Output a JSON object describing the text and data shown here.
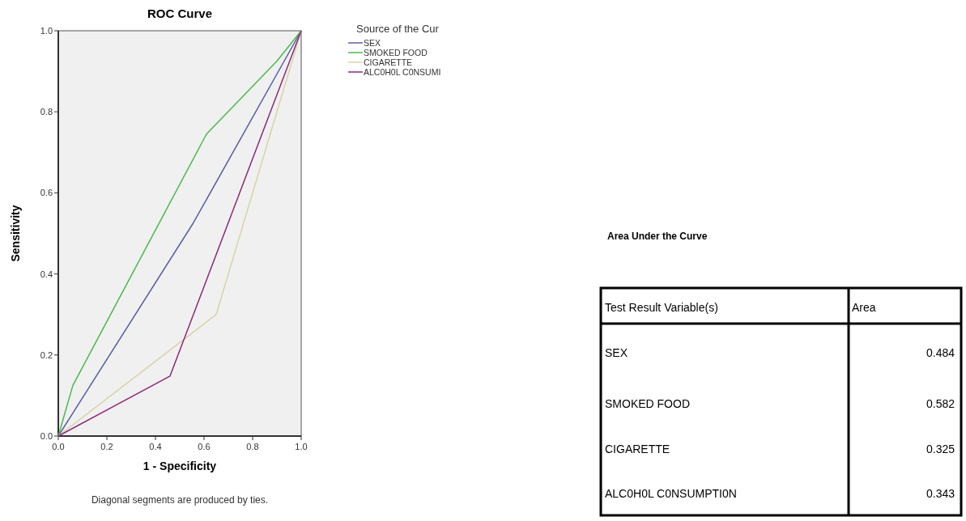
{
  "chart_data": {
    "type": "line",
    "title": "ROC Curve",
    "xlabel": "1 - Specificity",
    "ylabel": "Sensitivity",
    "legend_title": "Source of the Cur",
    "legend": "right",
    "xlim": [
      0,
      1
    ],
    "ylim": [
      0,
      1
    ],
    "xticks": [
      {
        "value": 0,
        "label": "0.0"
      },
      {
        "value": 0.2,
        "label": "0.2"
      },
      {
        "value": 0.4,
        "label": "0.4"
      },
      {
        "value": 0.6,
        "label": "0.6"
      },
      {
        "value": 0.8,
        "label": "0.8"
      },
      {
        "value": 1,
        "label": "1.0"
      }
    ],
    "yticks": [
      {
        "value": 0,
        "label": "0.0"
      },
      {
        "value": 0.2,
        "label": "0.2"
      },
      {
        "value": 0.4,
        "label": "0.4"
      },
      {
        "value": 0.6,
        "label": "0.6"
      },
      {
        "value": 0.8,
        "label": "0.8"
      },
      {
        "value": 1,
        "label": "1.0"
      }
    ],
    "series": [
      {
        "name": "SEX",
        "color": "#5b5ea6",
        "x": [
          0,
          0.555,
          1
        ],
        "values": [
          0,
          0.525,
          1
        ]
      },
      {
        "name": "SMOKED FOOD",
        "color": "#4cb84c",
        "x": [
          0,
          0.06,
          0.61,
          0.9,
          1
        ],
        "values": [
          0,
          0.125,
          0.745,
          0.925,
          1
        ]
      },
      {
        "name": "CIGARETTE",
        "color": "#d8d3a8",
        "x": [
          0,
          0.65,
          1
        ],
        "values": [
          0,
          0.3,
          1
        ]
      },
      {
        "name": "ALC0H0L C0NSUMI",
        "color": "#8b2a7a",
        "x": [
          0,
          0.46,
          1
        ],
        "values": [
          0,
          0.148,
          1
        ]
      }
    ],
    "annotations": [
      "Diagonal segments are produced by ties.",
      "Area Under the Curve",
      "Test Result Variable(s)",
      "Area",
      "SEX",
      "0.484",
      "SMOKED FOOD",
      "0.582",
      "CIGARETTE",
      "0.325",
      "ALC0H0L C0NSUMPTI0N",
      "0.343"
    ]
  }
}
